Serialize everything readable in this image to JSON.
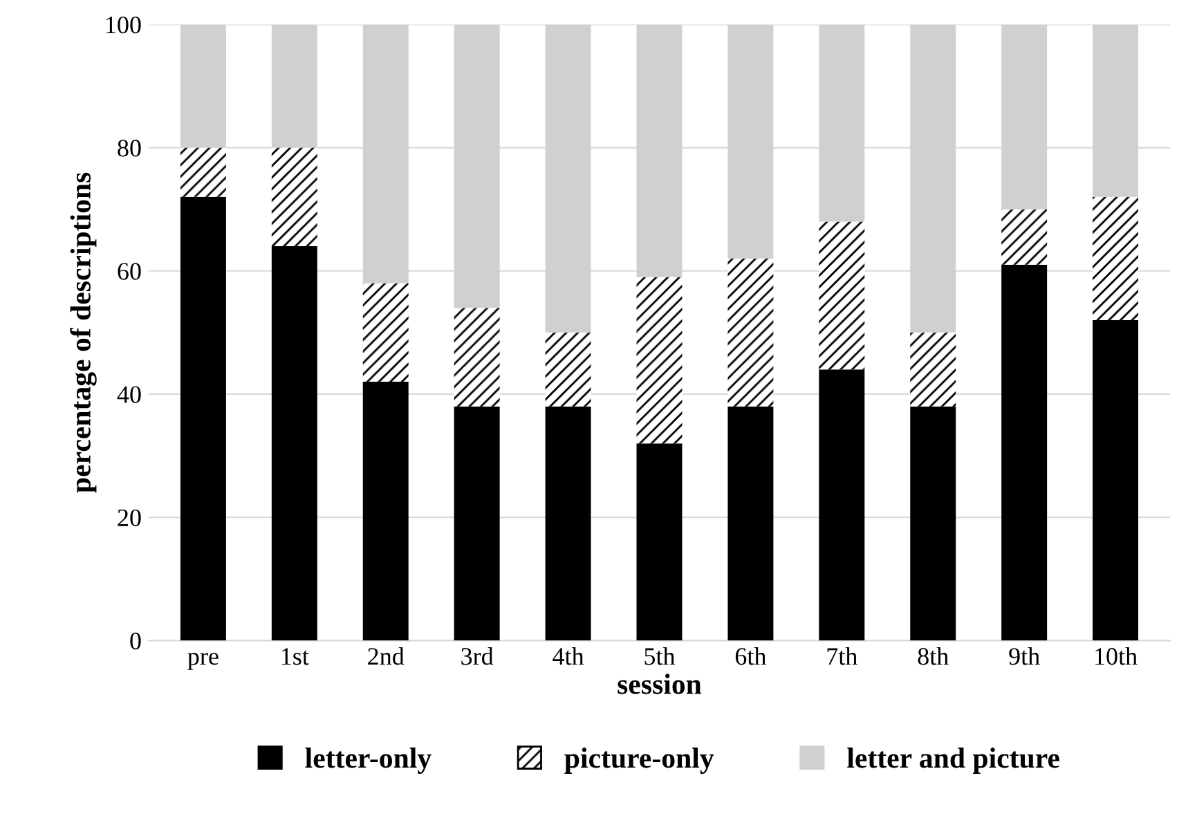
{
  "chart_data": {
    "type": "bar",
    "stacked": true,
    "xlabel": "session",
    "ylabel": "percentage of descriptions",
    "categories": [
      "pre",
      "1st",
      "2nd",
      "3rd",
      "4th",
      "5th",
      "6th",
      "7th",
      "8th",
      "9th",
      "10th"
    ],
    "series": [
      {
        "name": "letter-only",
        "color": "#000000",
        "values": [
          72,
          64,
          42,
          38,
          38,
          32,
          38,
          44,
          38,
          61,
          52
        ]
      },
      {
        "name": "picture-only",
        "color": "#ffffff",
        "values": [
          8,
          16,
          16,
          16,
          12,
          27,
          24,
          24,
          12,
          9,
          20
        ]
      },
      {
        "name": "letter and picture",
        "color": "#d0d0d0",
        "values": [
          20,
          20,
          42,
          46,
          50,
          41,
          38,
          32,
          50,
          30,
          28
        ]
      }
    ],
    "ylim": [
      0,
      100
    ],
    "yticks": [
      0,
      20,
      40,
      60,
      80,
      100
    ],
    "grid": "y",
    "legend": "bottom"
  }
}
